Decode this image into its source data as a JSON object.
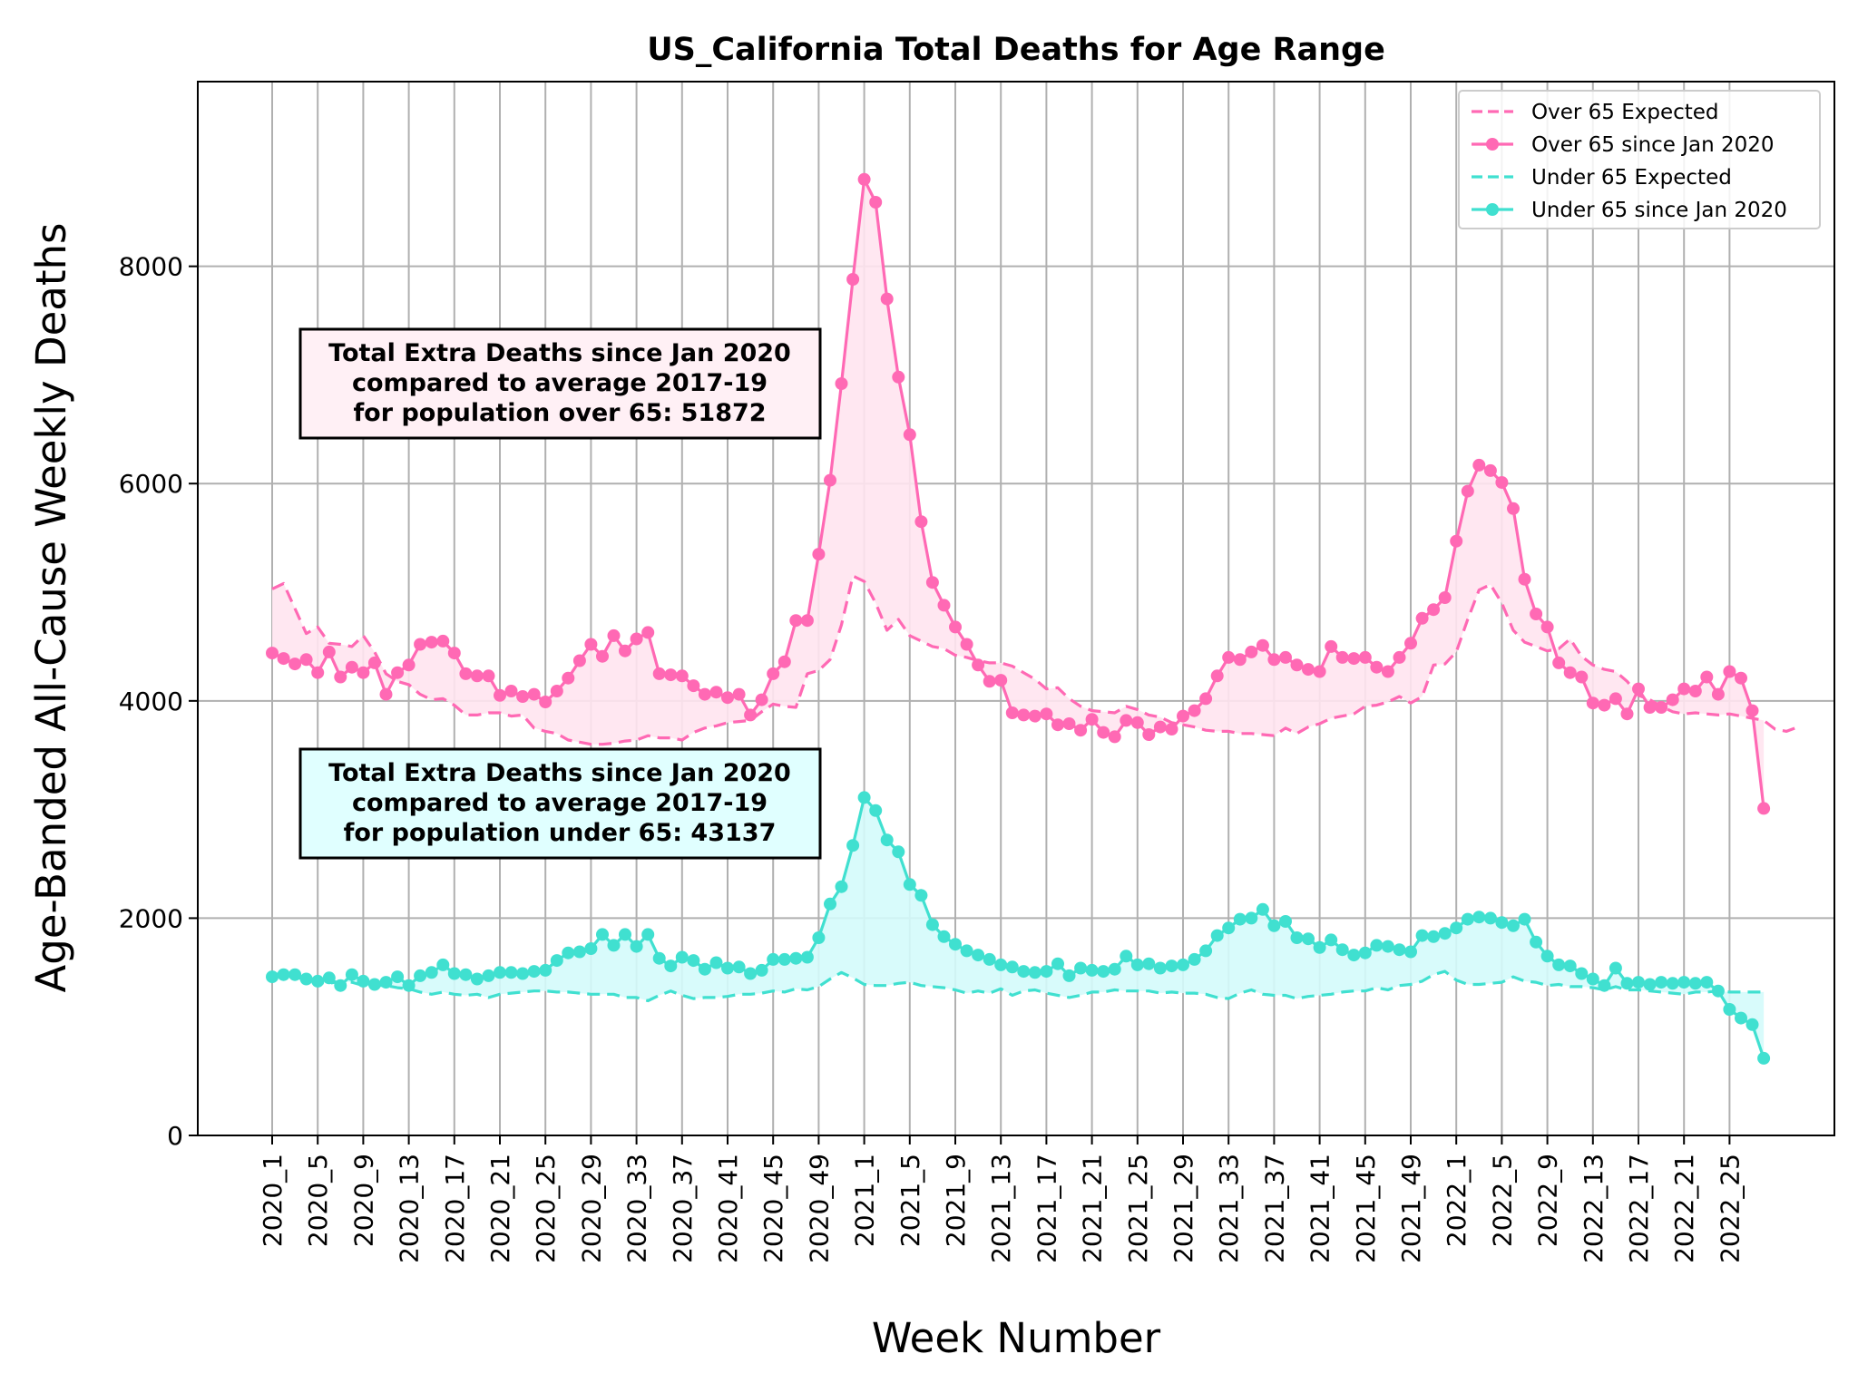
{
  "chart_data": {
    "type": "line",
    "title": "US_California Total Deaths for Age Range",
    "xlabel": "Week Number",
    "ylabel": "Age-Banded All-Cause Weekly Deaths",
    "ylim": [
      0,
      9700
    ],
    "yticks": [
      0,
      2000,
      4000,
      6000,
      8000
    ],
    "grid": true,
    "legend_position": "top-right",
    "xtick_labels": [
      "2020_1",
      "2020_5",
      "2020_9",
      "2020_13",
      "2020_17",
      "2020_21",
      "2020_25",
      "2020_29",
      "2020_33",
      "2020_37",
      "2020_41",
      "2020_45",
      "2020_49",
      "2021_1",
      "2021_5",
      "2021_9",
      "2021_13",
      "2021_17",
      "2021_21",
      "2021_25",
      "2021_29",
      "2021_33",
      "2021_37",
      "2021_41",
      "2021_45",
      "2021_49",
      "2022_1",
      "2022_5",
      "2022_9",
      "2022_13",
      "2022_17",
      "2022_21",
      "2022_25"
    ],
    "series": [
      {
        "name": "Over 65 Expected",
        "style": "dashed",
        "color": "#ff69b4",
        "values": [
          5030,
          5080,
          4850,
          4620,
          4680,
          4530,
          4520,
          4500,
          4600,
          4450,
          4250,
          4180,
          4150,
          4060,
          4010,
          4020,
          3960,
          3870,
          3870,
          3890,
          3890,
          3860,
          3870,
          3750,
          3720,
          3700,
          3640,
          3620,
          3600,
          3600,
          3610,
          3630,
          3640,
          3680,
          3660,
          3660,
          3640,
          3710,
          3750,
          3770,
          3800,
          3810,
          3820,
          3900,
          3970,
          3950,
          3940,
          4250,
          4280,
          4380,
          4700,
          5150,
          5100,
          4900,
          4650,
          4750,
          4600,
          4550,
          4500,
          4480,
          4420,
          4400,
          4370,
          4350,
          4350,
          4320,
          4260,
          4200,
          4110,
          4120,
          4020,
          3950,
          3910,
          3900,
          3890,
          3950,
          3920,
          3870,
          3850,
          3800,
          3780,
          3760,
          3730,
          3720,
          3720,
          3700,
          3700,
          3690,
          3680,
          3750,
          3700,
          3760,
          3790,
          3840,
          3860,
          3880,
          3950,
          3960,
          3990,
          4040,
          3980,
          4040,
          4330,
          4340,
          4450,
          4750,
          5020,
          5070,
          4900,
          4650,
          4540,
          4500,
          4460,
          4480,
          4570,
          4410,
          4330,
          4290,
          4270,
          4180,
          4050,
          4010,
          3950,
          3900,
          3880,
          3890,
          3880,
          3870,
          3880,
          3860,
          3840,
          3820,
          3740,
          3720,
          3760
        ],
        "points": false
      },
      {
        "name": "Over 65 since Jan 2020",
        "style": "solid",
        "color": "#ff69b4",
        "values": [
          4440,
          4390,
          4340,
          4380,
          4260,
          4450,
          4220,
          4310,
          4260,
          4350,
          4060,
          4260,
          4330,
          4520,
          4540,
          4550,
          4440,
          4250,
          4230,
          4230,
          4050,
          4090,
          4040,
          4060,
          3990,
          4090,
          4210,
          4370,
          4520,
          4410,
          4600,
          4460,
          4570,
          4630,
          4250,
          4240,
          4230,
          4140,
          4060,
          4080,
          4030,
          4060,
          3870,
          4010,
          4250,
          4360,
          4740,
          4740,
          5350,
          6030,
          6920,
          7880,
          8800,
          8590,
          7700,
          6980,
          6450,
          5650,
          5090,
          4880,
          4680,
          4520,
          4330,
          4180,
          4190,
          3890,
          3870,
          3860,
          3880,
          3780,
          3790,
          3730,
          3830,
          3710,
          3670,
          3820,
          3800,
          3690,
          3760,
          3740,
          3860,
          3910,
          4020,
          4230,
          4400,
          4380,
          4450,
          4510,
          4380,
          4400,
          4330,
          4290,
          4270,
          4500,
          4400,
          4390,
          4400,
          4310,
          4270,
          4400,
          4530,
          4760,
          4840,
          4950,
          5470,
          5930,
          6170,
          6120,
          6010,
          5770,
          5120,
          4800,
          4680,
          4350,
          4260,
          4220,
          3980,
          3960,
          4020,
          3880,
          4110,
          3940,
          3940,
          4010,
          4110,
          4090,
          4220,
          4060,
          4270,
          4210,
          3910,
          3010
        ],
        "points": true
      },
      {
        "name": "Under 65 Expected",
        "style": "dashed",
        "color": "#40e0d0",
        "values": [
          1490,
          1480,
          1460,
          1430,
          1410,
          1400,
          1420,
          1410,
          1380,
          1380,
          1380,
          1360,
          1350,
          1320,
          1300,
          1320,
          1300,
          1290,
          1300,
          1270,
          1300,
          1310,
          1320,
          1330,
          1330,
          1320,
          1320,
          1310,
          1300,
          1300,
          1300,
          1270,
          1270,
          1240,
          1290,
          1330,
          1290,
          1260,
          1270,
          1270,
          1280,
          1300,
          1300,
          1310,
          1330,
          1320,
          1350,
          1340,
          1370,
          1440,
          1500,
          1450,
          1390,
          1380,
          1380,
          1400,
          1410,
          1380,
          1370,
          1360,
          1340,
          1310,
          1330,
          1310,
          1350,
          1290,
          1330,
          1340,
          1310,
          1290,
          1270,
          1290,
          1320,
          1320,
          1340,
          1330,
          1330,
          1330,
          1310,
          1320,
          1310,
          1310,
          1300,
          1270,
          1260,
          1310,
          1340,
          1300,
          1290,
          1290,
          1260,
          1280,
          1290,
          1300,
          1320,
          1330,
          1330,
          1360,
          1340,
          1380,
          1390,
          1420,
          1480,
          1510,
          1430,
          1390,
          1390,
          1400,
          1410,
          1460,
          1420,
          1410,
          1380,
          1390,
          1370,
          1370,
          1360,
          1340,
          1370,
          1340,
          1340,
          1330,
          1320,
          1310,
          1300,
          1320,
          1320,
          1330,
          1320,
          1320,
          1320,
          1320
        ],
        "points": false
      },
      {
        "name": "Under 65 since Jan 2020",
        "style": "solid",
        "color": "#40e0d0",
        "values": [
          1460,
          1480,
          1480,
          1440,
          1420,
          1450,
          1380,
          1480,
          1420,
          1390,
          1410,
          1460,
          1380,
          1470,
          1500,
          1570,
          1490,
          1480,
          1440,
          1470,
          1500,
          1500,
          1490,
          1510,
          1520,
          1610,
          1680,
          1690,
          1720,
          1850,
          1750,
          1850,
          1740,
          1850,
          1630,
          1560,
          1640,
          1610,
          1530,
          1590,
          1540,
          1550,
          1490,
          1520,
          1620,
          1620,
          1630,
          1640,
          1820,
          2130,
          2290,
          2670,
          3110,
          2990,
          2720,
          2610,
          2310,
          2210,
          1940,
          1830,
          1760,
          1700,
          1660,
          1620,
          1570,
          1550,
          1510,
          1500,
          1510,
          1580,
          1470,
          1540,
          1520,
          1510,
          1530,
          1650,
          1570,
          1580,
          1540,
          1560,
          1570,
          1620,
          1700,
          1840,
          1910,
          1990,
          2000,
          2080,
          1930,
          1970,
          1820,
          1810,
          1730,
          1800,
          1710,
          1660,
          1680,
          1750,
          1740,
          1710,
          1690,
          1840,
          1830,
          1860,
          1910,
          1990,
          2010,
          2000,
          1960,
          1930,
          1990,
          1780,
          1650,
          1570,
          1560,
          1490,
          1440,
          1380,
          1540,
          1400,
          1410,
          1390,
          1410,
          1400,
          1410,
          1400,
          1410,
          1330,
          1160,
          1080,
          1020,
          710
        ],
        "points": true
      }
    ],
    "annotations": [
      {
        "lines": [
          "Total Extra Deaths since Jan 2020",
          "compared to average 2017-19",
          "for population over 65: 51872"
        ],
        "bg": "#fff0f5"
      },
      {
        "lines": [
          "Total Extra Deaths since Jan 2020",
          "compared to average 2017-19",
          "for population under 65: 43137"
        ],
        "bg": "#e0ffff"
      }
    ],
    "fill_colors": {
      "over": "#ffe4ef",
      "under": "#d4fbfb"
    }
  }
}
